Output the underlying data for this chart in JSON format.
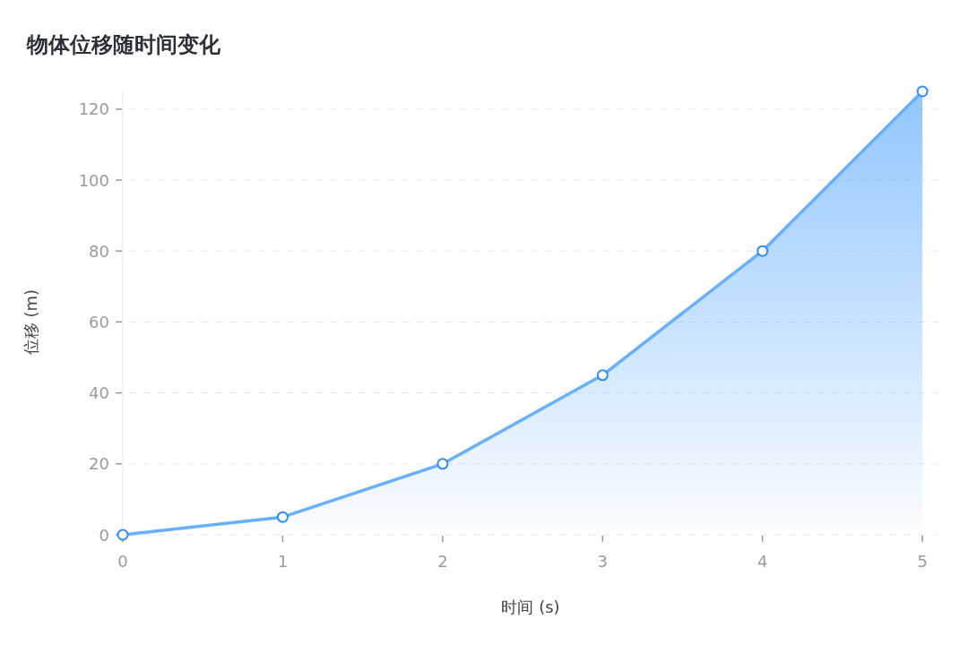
{
  "chart_data": {
    "type": "area",
    "title": "物体位移随时间变化",
    "xlabel": "时间 (s)",
    "ylabel": "位移 (m)",
    "x": [
      0,
      1,
      2,
      3,
      4,
      5
    ],
    "series": [
      {
        "color": "#66b0ff",
        "values": [
          0,
          5,
          20,
          45,
          80,
          125
        ]
      }
    ],
    "xlim": [
      0,
      5.1
    ],
    "ylim": [
      0,
      125
    ],
    "xticks": [
      0,
      1,
      2,
      3,
      4,
      5
    ],
    "yticks": [
      0,
      20,
      40,
      60,
      80,
      100,
      120
    ],
    "grid": "y",
    "marker": "circle",
    "line_style": "solid"
  }
}
